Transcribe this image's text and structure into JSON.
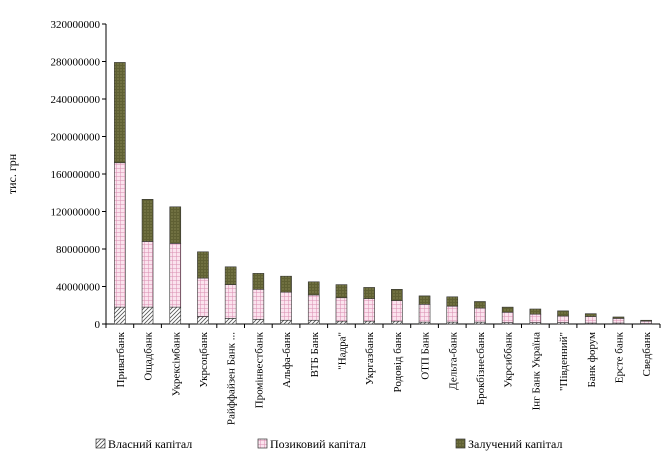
{
  "chart_data": {
    "type": "bar",
    "stacked": true,
    "ylabel": "тис. грн",
    "ylim": [
      0,
      320000000
    ],
    "yticks": [
      0,
      40000000,
      80000000,
      120000000,
      160000000,
      200000000,
      240000000,
      280000000,
      320000000
    ],
    "ytick_labels": [
      "0",
      "40000000",
      "80000000",
      "120000000",
      "160000000",
      "200000000",
      "240000000",
      "280000000",
      "320000000"
    ],
    "grid": false,
    "legend_position": "bottom",
    "categories": [
      "Приватбанк",
      "Ощадбанк",
      "Укрексімбанк",
      "Укрсоцбанк",
      "Райффайзен Банк ...",
      "Промінвестбанк",
      "Альфа-банк",
      "ВТБ Банк",
      "\"Надра\"",
      "Укргазбанк",
      "Родовід банк",
      "ОТП Банк",
      "Дельта-банк",
      "Брокбізнесбанк",
      "Укрсиббанк",
      "Інг Банк Україна",
      "\"Південний\"",
      "Банк форум",
      "Ерсте банк",
      "Сведбанк"
    ],
    "series": [
      {
        "name": "Власний капітал",
        "pattern": "diagonal-hatch",
        "color": "#c8c8c8",
        "values": [
          18000000,
          18000000,
          18000000,
          8000000,
          6000000,
          5000000,
          4000000,
          4000000,
          3000000,
          3000000,
          3000000,
          2000000,
          2000000,
          2000000,
          1500000,
          1500000,
          1500000,
          1000000,
          1000000,
          500000
        ]
      },
      {
        "name": "Позиковий капітал",
        "pattern": "pink-grid",
        "color": "#f4c8dc",
        "values": [
          154000000,
          70000000,
          68000000,
          41000000,
          36000000,
          32000000,
          30000000,
          27000000,
          25000000,
          24000000,
          22000000,
          19000000,
          17000000,
          15000000,
          11000000,
          9000000,
          7000000,
          7000000,
          5000000,
          2500000
        ]
      },
      {
        "name": "Залучений капітал",
        "pattern": "olive-dots",
        "color": "#6b6b3a",
        "values": [
          107000000,
          45000000,
          39000000,
          28000000,
          19000000,
          17000000,
          17000000,
          14000000,
          14000000,
          12000000,
          12000000,
          9000000,
          10000000,
          7000000,
          5500000,
          5500000,
          5500000,
          3000000,
          1500000,
          1000000
        ]
      }
    ]
  }
}
